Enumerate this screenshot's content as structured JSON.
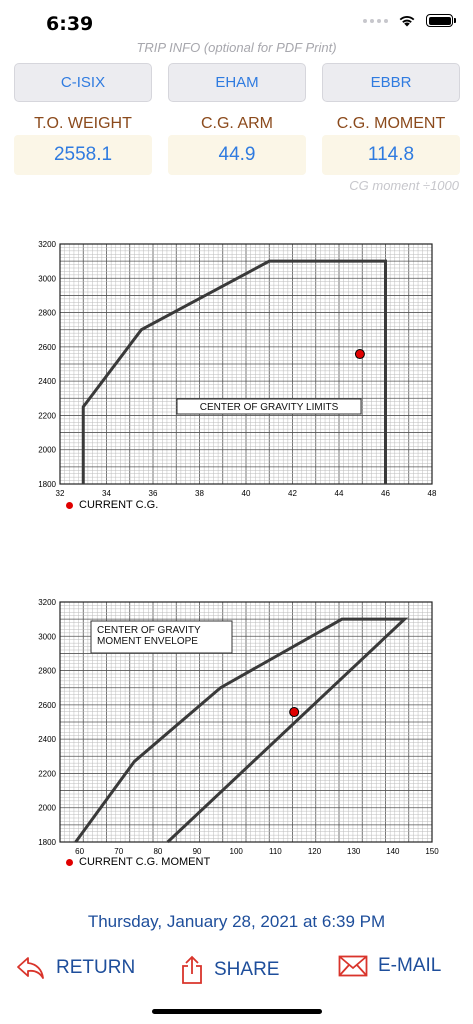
{
  "status_bar": {
    "time": "6:39",
    "signal_icon": "signal-dots-icon",
    "wifi_icon": "wifi-icon",
    "battery_icon": "battery-icon"
  },
  "trip_info_label": "TRIP INFO (optional for PDF Print)",
  "route": {
    "aircraft": "C-ISIX",
    "departure": "EHAM",
    "destination": "EBBR"
  },
  "weights": {
    "to_weight_label": "T.O. WEIGHT",
    "to_weight_value": "2558.1",
    "cg_arm_label": "C.G. ARM",
    "cg_arm_value": "44.9",
    "cg_moment_label": "C.G. MOMENT",
    "cg_moment_value": "114.8",
    "cg_moment_note": "CG moment  ÷1000"
  },
  "chart_data": [
    {
      "type": "line",
      "title": "CENTER OF GRAVITY LIMITS",
      "x_ticks": [
        "32",
        "34",
        "36",
        "38",
        "40",
        "42",
        "44",
        "46",
        "48"
      ],
      "y_ticks": [
        "1800",
        "2000",
        "2200",
        "2400",
        "2600",
        "2800",
        "3000",
        "3200"
      ],
      "xlim": [
        32,
        48
      ],
      "ylim": [
        1800,
        3200
      ],
      "grid": true,
      "envelope": [
        {
          "x": 33,
          "y": 1800
        },
        {
          "x": 33,
          "y": 2250
        },
        {
          "x": 35.5,
          "y": 2700
        },
        {
          "x": 41,
          "y": 3100
        },
        {
          "x": 46,
          "y": 3100
        },
        {
          "x": 46,
          "y": 1800
        }
      ],
      "current_point": {
        "x": 44.9,
        "y": 2558.1
      },
      "legend": "CURRENT C.G."
    },
    {
      "type": "line",
      "title_lines": [
        "CENTER OF GRAVITY",
        "MOMENT ENVELOPE"
      ],
      "x_ticks": [
        "60",
        "70",
        "80",
        "90",
        "100",
        "110",
        "120",
        "130",
        "140",
        "150"
      ],
      "y_ticks": [
        "1800",
        "2000",
        "2200",
        "2400",
        "2600",
        "2800",
        "3000",
        "3200"
      ],
      "xlim": [
        55,
        150
      ],
      "ylim": [
        1800,
        3200
      ],
      "grid": true,
      "envelope": [
        {
          "x": 59,
          "y": 1800
        },
        {
          "x": 74,
          "y": 2270
        },
        {
          "x": 96,
          "y": 2700
        },
        {
          "x": 127,
          "y": 3100
        },
        {
          "x": 143,
          "y": 3100
        },
        {
          "x": 82.5,
          "y": 1800
        }
      ],
      "current_point": {
        "x": 114.8,
        "y": 2558.1
      },
      "legend": "CURRENT C.G. MOMENT"
    }
  ],
  "footer": {
    "date": "Thursday, January 28, 2021 at 6:39 PM",
    "return_label": "RETURN",
    "return_icon": "return-arrow-icon",
    "share_label": "SHARE",
    "share_icon": "share-icon",
    "email_label": "E-MAIL",
    "email_icon": "envelope-icon"
  }
}
